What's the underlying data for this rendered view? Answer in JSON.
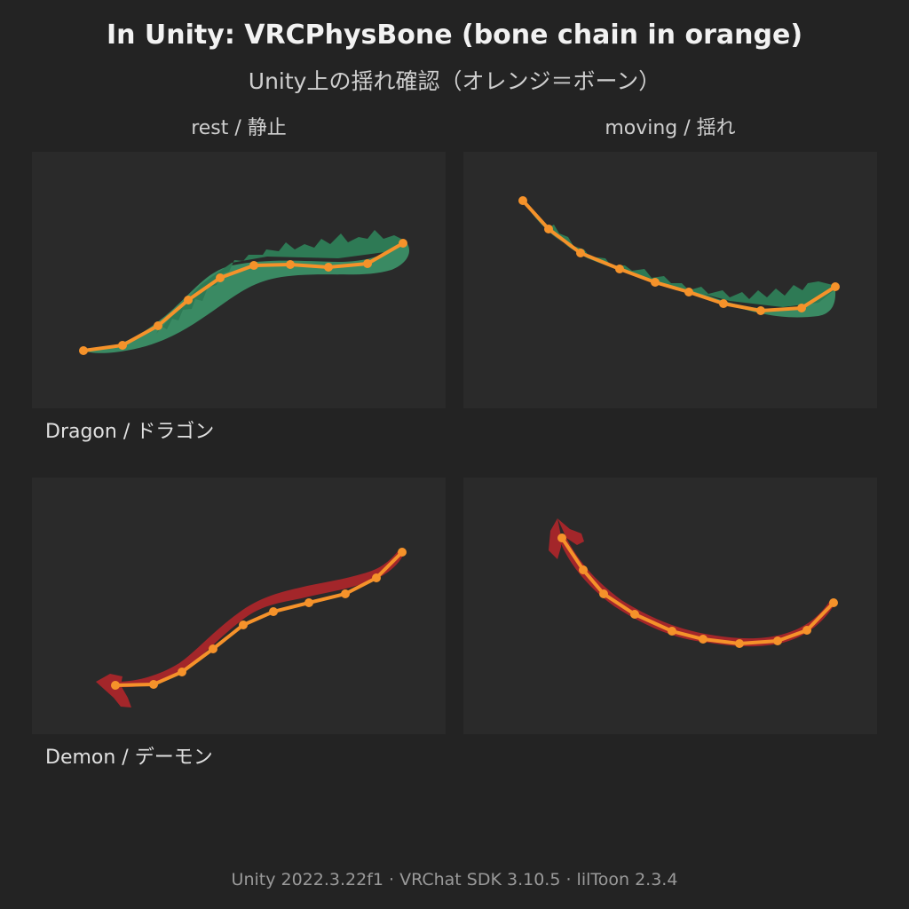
{
  "header": {
    "title": "In Unity: VRCPhysBone (bone chain in orange)",
    "subtitle": "Unity上の揺れ確認（オレンジ＝ボーン）"
  },
  "columns": {
    "rest": "rest / 静止",
    "moving": "moving / 揺れ"
  },
  "rows": {
    "dragon": "Dragon / ドラゴン",
    "demon": "Demon / デーモン"
  },
  "colors": {
    "bone": "#f5922a",
    "dragon_scale": "#3a8a63",
    "demon_tail": "#a3262a",
    "panel_bg": "#2a2a2a",
    "page_bg": "#232323"
  },
  "footer": "Unity 2022.3.22f1 · VRChat SDK 3.10.5 · lilToon 2.3.4"
}
